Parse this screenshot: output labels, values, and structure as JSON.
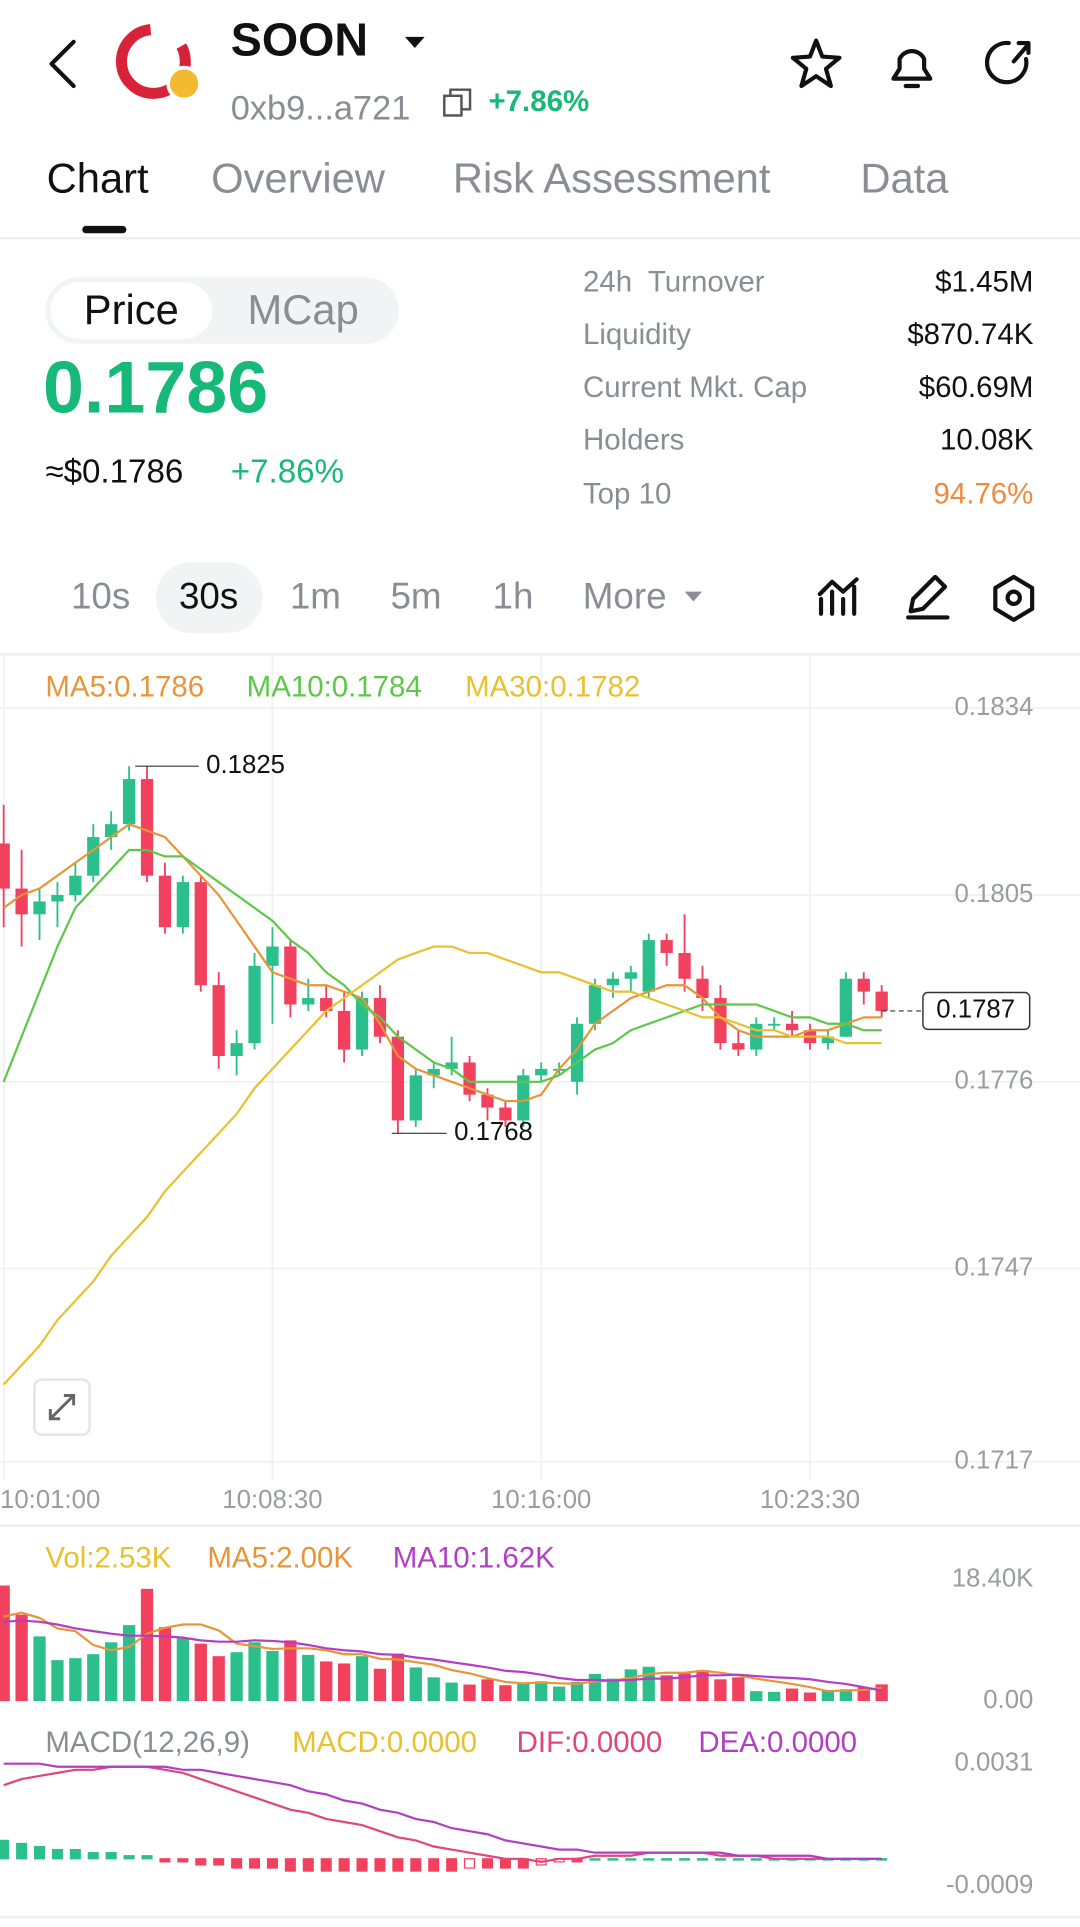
{
  "header": {
    "symbol": "SOON",
    "address": "0xb9...a721",
    "change": "+7.86%"
  },
  "tabs": [
    "Chart",
    "Overview",
    "Risk Assessment",
    "Data"
  ],
  "toggle": [
    "Price",
    "MCap"
  ],
  "price": {
    "value": "0.1786",
    "usd": "≈$0.1786",
    "change": "+7.86%"
  },
  "stats": [
    {
      "label": "24h  Turnover",
      "value": "$1.45M"
    },
    {
      "label": "Liquidity",
      "value": "$870.74K"
    },
    {
      "label": "Current Mkt. Cap",
      "value": "$60.69M"
    },
    {
      "label": "Holders",
      "value": "10.08K"
    },
    {
      "label": "Top 10",
      "value": "94.76%"
    }
  ],
  "intervals": [
    "10s",
    "30s",
    "1m",
    "5m",
    "1h",
    "More"
  ],
  "chart_data": [
    {
      "type": "candlestick",
      "up_color": "#2bbf8c",
      "down_color": "#f2405f",
      "categories": [
        "10:01:00",
        null,
        null,
        null,
        null,
        null,
        null,
        null,
        null,
        null,
        null,
        null,
        null,
        null,
        null,
        "10:08:30",
        null,
        null,
        null,
        null,
        null,
        null,
        null,
        null,
        null,
        null,
        null,
        null,
        null,
        null,
        "10:16:00",
        null,
        null,
        null,
        null,
        null,
        null,
        null,
        null,
        null,
        null,
        null,
        null,
        null,
        null,
        "10:23:30",
        null,
        null,
        null,
        null
      ],
      "open": [
        0.1813,
        0.1806,
        0.1802,
        0.1804,
        0.1805,
        0.1808,
        0.1814,
        0.1816,
        0.1823,
        0.1808,
        0.18,
        0.1807,
        0.1791,
        0.178,
        0.1782,
        0.1794,
        0.1797,
        0.1788,
        0.1789,
        0.1787,
        0.1781,
        0.1789,
        0.1783,
        0.177,
        0.1777,
        0.1778,
        0.1779,
        0.1774,
        0.1772,
        0.177,
        0.1777,
        0.1778,
        0.1776,
        0.1785,
        0.1791,
        0.1792,
        0.179,
        0.1798,
        0.1796,
        0.1792,
        0.1789,
        0.1782,
        0.1781,
        0.1785,
        0.1785,
        0.1784,
        0.1782,
        0.1783,
        0.1792,
        0.179
      ],
      "high": [
        0.1819,
        0.1812,
        0.1806,
        0.1807,
        0.181,
        0.1816,
        0.1818,
        0.1825,
        0.1825,
        0.181,
        0.1808,
        0.1808,
        0.1793,
        0.1784,
        0.1796,
        0.18,
        0.1798,
        0.1792,
        0.1791,
        0.179,
        0.179,
        0.1791,
        0.1784,
        0.1778,
        0.1779,
        0.1783,
        0.178,
        0.1775,
        0.1773,
        0.1778,
        0.1779,
        0.1779,
        0.1786,
        0.1792,
        0.1793,
        0.1794,
        0.1799,
        0.1799,
        0.1802,
        0.1794,
        0.1791,
        0.1784,
        0.1786,
        0.1786,
        0.1787,
        0.1785,
        0.1784,
        0.1793,
        0.1793,
        0.1791
      ],
      "low": [
        0.18,
        0.1797,
        0.1798,
        0.18,
        0.1804,
        0.1807,
        0.1812,
        0.1815,
        0.1807,
        0.1799,
        0.1799,
        0.179,
        0.1778,
        0.1777,
        0.1781,
        0.1785,
        0.1786,
        0.1787,
        0.1786,
        0.1779,
        0.178,
        0.1782,
        0.1768,
        0.1769,
        0.1775,
        0.1777,
        0.1773,
        0.177,
        0.1769,
        0.1769,
        0.1776,
        0.1777,
        0.1774,
        0.1784,
        0.1789,
        0.179,
        0.1789,
        0.1794,
        0.179,
        0.1787,
        0.1781,
        0.178,
        0.178,
        0.1784,
        0.1783,
        0.1781,
        0.1781,
        0.1783,
        0.1788,
        0.1786
      ],
      "close": [
        0.1806,
        0.1802,
        0.1804,
        0.1805,
        0.1808,
        0.1814,
        0.1816,
        0.1823,
        0.1808,
        0.18,
        0.1807,
        0.1791,
        0.178,
        0.1782,
        0.1794,
        0.1797,
        0.1788,
        0.1789,
        0.1787,
        0.1781,
        0.1789,
        0.1783,
        0.177,
        0.1777,
        0.1778,
        0.1779,
        0.1774,
        0.1772,
        0.177,
        0.1777,
        0.1778,
        0.1778,
        0.1785,
        0.1791,
        0.1792,
        0.1793,
        0.1798,
        0.1796,
        0.1792,
        0.1789,
        0.1782,
        0.1781,
        0.1785,
        0.1785,
        0.1784,
        0.1782,
        0.1783,
        0.1792,
        0.179,
        0.1787
      ],
      "series": [
        {
          "name": "MA5:0.1786",
          "color": "#e8953a",
          "values": [
            0.1803,
            0.1805,
            0.1806,
            0.1808,
            0.181,
            0.1812,
            0.1814,
            0.1816,
            0.1815,
            0.1814,
            0.1811,
            0.1808,
            0.1805,
            0.1801,
            0.1797,
            0.1793,
            0.1792,
            0.1791,
            0.1791,
            0.179,
            0.1789,
            0.1785,
            0.178,
            0.1778,
            0.1777,
            0.1776,
            0.1775,
            0.1774,
            0.1773,
            0.1773,
            0.1774,
            0.1778,
            0.1781,
            0.1785,
            0.1787,
            0.1789,
            0.179,
            0.1791,
            0.1791,
            0.1789,
            0.1786,
            0.1784,
            0.1783,
            0.1783,
            0.1783,
            0.1784,
            0.1784,
            0.1785,
            0.1786,
            0.1786
          ]
        },
        {
          "name": "MA10:0.1784",
          "color": "#5ec74a",
          "values": [
            0.1776,
            0.1783,
            0.179,
            0.1797,
            0.1803,
            0.1806,
            0.1809,
            0.1812,
            0.1812,
            0.1811,
            0.1811,
            0.1809,
            0.1807,
            0.1805,
            0.1803,
            0.1801,
            0.1798,
            0.1796,
            0.1793,
            0.1791,
            0.1788,
            0.1786,
            0.1783,
            0.1781,
            0.1779,
            0.1778,
            0.1776,
            0.1776,
            0.1776,
            0.1776,
            0.1776,
            0.1777,
            0.1779,
            0.1781,
            0.1782,
            0.1784,
            0.1785,
            0.1786,
            0.1787,
            0.1788,
            0.1788,
            0.1788,
            0.1788,
            0.1787,
            0.1786,
            0.1786,
            0.1785,
            0.1785,
            0.1784,
            0.1784
          ]
        },
        {
          "name": "MA30:0.1782",
          "color": "#e8c12e",
          "values": [
            0.1729,
            0.1732,
            0.1735,
            0.1739,
            0.1742,
            0.1745,
            0.1749,
            0.1752,
            0.1755,
            0.1759,
            0.1762,
            0.1765,
            0.1768,
            0.1771,
            0.1775,
            0.1778,
            0.1781,
            0.1784,
            0.1787,
            0.1789,
            0.1791,
            0.1793,
            0.1795,
            0.1796,
            0.1797,
            0.1797,
            0.1796,
            0.1796,
            0.1795,
            0.1794,
            0.1793,
            0.1793,
            0.1792,
            0.1791,
            0.179,
            0.179,
            0.1789,
            0.1788,
            0.1787,
            0.1786,
            0.1786,
            0.1785,
            0.1784,
            0.1784,
            0.1783,
            0.1783,
            0.1783,
            0.1782,
            0.1782,
            0.1782
          ]
        }
      ],
      "ylim": [
        0.1717,
        0.1834
      ],
      "yticks": [
        0.1834,
        0.1805,
        0.1776,
        0.1747,
        0.1717
      ],
      "grid": true,
      "high_label": 0.1825,
      "low_label": 0.1768,
      "last_price": 0.1787
    },
    {
      "type": "bar",
      "title": "Vol:2.53K",
      "values": [
        17.5,
        13.1,
        9.8,
        6.2,
        6.5,
        7.1,
        8.9,
        11.5,
        17.0,
        11.2,
        9.6,
        8.7,
        6.8,
        7.4,
        8.9,
        7.6,
        9.2,
        7.0,
        6.0,
        5.7,
        6.8,
        4.9,
        7.2,
        5.1,
        3.6,
        2.8,
        2.5,
        3.3,
        2.4,
        2.6,
        3.0,
        2.2,
        2.9,
        4.1,
        3.4,
        4.8,
        5.2,
        3.9,
        4.2,
        4.7,
        3.3,
        3.6,
        1.5,
        1.4,
        1.9,
        1.3,
        1.6,
        1.8,
        2.1,
        2.53
      ],
      "series": [
        {
          "name": "MA5:2.00K",
          "color": "#e8953a",
          "values": [
            12.8,
            13.4,
            12.6,
            11.0,
            10.6,
            8.5,
            7.7,
            8.2,
            10.2,
            11.1,
            11.6,
            11.6,
            10.7,
            8.7,
            8.3,
            7.9,
            8.0,
            8.0,
            7.7,
            7.1,
            7.1,
            6.4,
            6.3,
            5.9,
            5.5,
            4.7,
            4.2,
            3.5,
            2.9,
            2.7,
            2.8,
            2.7,
            2.6,
            3.0,
            3.1,
            3.5,
            4.1,
            4.3,
            4.3,
            4.6,
            4.3,
            3.9,
            3.4,
            3.0,
            2.6,
            2.1,
            1.5,
            1.6,
            1.7,
            2.0
          ]
        },
        {
          "name": "MA10:1.62K",
          "color": "#b33ec4",
          "values": [
            12.0,
            12.2,
            12.0,
            11.6,
            11.0,
            10.6,
            10.2,
            9.9,
            9.9,
            9.8,
            9.6,
            9.2,
            9.0,
            9.0,
            9.2,
            9.1,
            8.9,
            8.5,
            8.0,
            7.7,
            7.5,
            7.1,
            7.0,
            6.6,
            6.3,
            5.9,
            5.5,
            5.1,
            4.6,
            4.4,
            4.0,
            3.5,
            3.2,
            3.2,
            3.1,
            3.2,
            3.4,
            3.4,
            3.6,
            3.9,
            3.9,
            4.0,
            3.8,
            3.6,
            3.5,
            3.3,
            2.9,
            2.6,
            2.1,
            1.62
          ]
        }
      ],
      "ylim": [
        0,
        18.4
      ],
      "yticks": [
        {
          "value": 18.4,
          "label": "18.40K"
        },
        {
          "value": 0,
          "label": "0.00"
        }
      ]
    },
    {
      "type": "macd",
      "title": "MACD(12,26,9)",
      "series": [
        {
          "name": "MACD:0.0000",
          "color": "#e8c12e",
          "kind": "bar",
          "values": [
            0.0006,
            0.0005,
            0.0004,
            0.0003,
            0.0003,
            0.0002,
            0.0002,
            0.0001,
            0.0001,
            -0.0001,
            -0.0001,
            -0.0002,
            -0.0002,
            -0.0003,
            -0.0003,
            -0.0003,
            -0.0004,
            -0.0004,
            -0.0004,
            -0.0004,
            -0.0004,
            -0.0004,
            -0.0004,
            -0.0004,
            -0.0004,
            -0.0004,
            -0.0003,
            -0.0003,
            -0.0003,
            -0.0003,
            -0.0002,
            -0.0001,
            -0.0001,
            0,
            0,
            0,
            0,
            0,
            0,
            0,
            0,
            0,
            0,
            0,
            0,
            0,
            0,
            0,
            0,
            0
          ]
        },
        {
          "name": "DIF:0.0000",
          "color": "#e0457b",
          "values": [
            0.0024,
            0.0026,
            0.0027,
            0.0028,
            0.0029,
            0.0029,
            0.003,
            0.003,
            0.003,
            0.0029,
            0.0028,
            0.0026,
            0.0024,
            0.0022,
            0.002,
            0.0018,
            0.0016,
            0.0015,
            0.0013,
            0.0012,
            0.0011,
            0.0009,
            0.0007,
            0.0006,
            0.0004,
            0.0003,
            0.0002,
            0.0001,
            0,
            0,
            -0.0001,
            0,
            0,
            0.0001,
            0.0001,
            0.0001,
            0.0002,
            0.0002,
            0.0002,
            0.0002,
            0.0001,
            0.0001,
            0.0001,
            0,
            0,
            0,
            0,
            0,
            0,
            0
          ]
        },
        {
          "name": "DEA:0.0000",
          "color": "#b33ec4",
          "values": [
            0.0031,
            0.0031,
            0.0031,
            0.003,
            0.003,
            0.003,
            0.003,
            0.003,
            0.003,
            0.003,
            0.0029,
            0.0029,
            0.0028,
            0.0027,
            0.0026,
            0.0025,
            0.0024,
            0.0022,
            0.0021,
            0.0019,
            0.0018,
            0.0016,
            0.0015,
            0.0013,
            0.0012,
            0.001,
            0.0009,
            0.0008,
            0.0006,
            0.0005,
            0.0004,
            0.0003,
            0.0003,
            0.0002,
            0.0002,
            0.0002,
            0.0002,
            0.0002,
            0.0002,
            0.0002,
            0.0002,
            0.0001,
            0.0001,
            0.0001,
            0.0001,
            0.0001,
            0,
            0,
            0,
            0
          ]
        }
      ],
      "ylim": [
        -0.0009,
        0.0031
      ],
      "yticks": [
        0.0031,
        -0.0009
      ]
    }
  ]
}
